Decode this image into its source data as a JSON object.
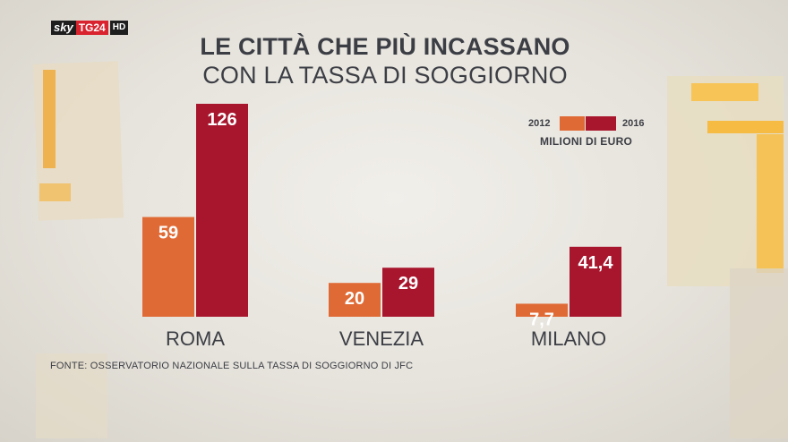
{
  "channel": {
    "brand": "sky",
    "channel": "TG24",
    "quality": "HD"
  },
  "title": {
    "line1": "LE CITTÀ CHE PIÙ INCASSANO",
    "line2": "CON LA TASSA DI SOGGIORNO"
  },
  "legend": {
    "year_a": "2012",
    "year_b": "2016",
    "unit": "MILIONI DI EURO"
  },
  "source": "FONTE: OSSERVATORIO NAZIONALE SULLA TASSA DI SOGGIORNO DI JFC",
  "colors": {
    "year_2012": "#e06a35",
    "year_2016": "#a8162d",
    "text": "#3c3e45"
  },
  "chart_data": {
    "type": "bar",
    "title": "LE CITTÀ CHE PIÙ INCASSANO CON LA TASSA DI SOGGIORNO",
    "unit": "MILIONI DI EURO",
    "categories": [
      "ROMA",
      "VENEZIA",
      "MILANO"
    ],
    "series": [
      {
        "name": "2012",
        "values": [
          59,
          20,
          7.7
        ],
        "labels": [
          "59",
          "20",
          "7,7"
        ]
      },
      {
        "name": "2016",
        "values": [
          126,
          29,
          41.4
        ],
        "labels": [
          "126",
          "29",
          "41,4"
        ]
      }
    ],
    "ylim": [
      0,
      126
    ],
    "legend_position": "top-right"
  }
}
